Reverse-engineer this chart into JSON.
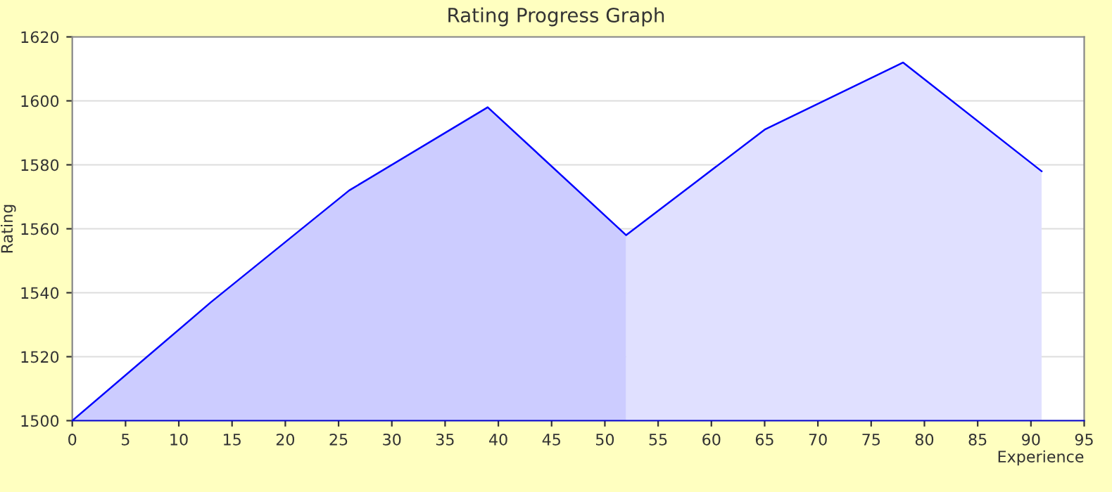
{
  "chart_data": {
    "type": "line",
    "title": "Rating Progress Graph",
    "xlabel": "Experience",
    "ylabel": "Rating",
    "series": [
      {
        "type": "area",
        "color": "#ccccff",
        "x": [
          0,
          13,
          26,
          39,
          52
        ],
        "values": [
          1500,
          1537,
          1572,
          1598,
          1558
        ]
      },
      {
        "type": "area",
        "color": "#e0e0ff",
        "x": [
          52,
          65,
          78,
          91
        ],
        "values": [
          1558,
          1591,
          1612,
          1578
        ]
      },
      {
        "color": "#0000ff",
        "x": [
          0,
          13,
          26,
          39,
          52,
          65,
          78,
          91
        ],
        "values": [
          1500,
          1537,
          1572,
          1598,
          1558,
          1591,
          1612,
          1578
        ]
      }
    ],
    "xlim": [
      0,
      95
    ],
    "xticks": [
      0,
      5,
      10,
      15,
      20,
      25,
      30,
      35,
      40,
      45,
      50,
      55,
      60,
      65,
      70,
      75,
      80,
      85,
      90,
      95
    ],
    "ylim": [
      1500,
      1620
    ],
    "yticks": [
      1500,
      1520,
      1540,
      1560,
      1580,
      1600,
      1620
    ],
    "grid": "y",
    "legend": false,
    "marker": "none",
    "line_style": "solid"
  }
}
